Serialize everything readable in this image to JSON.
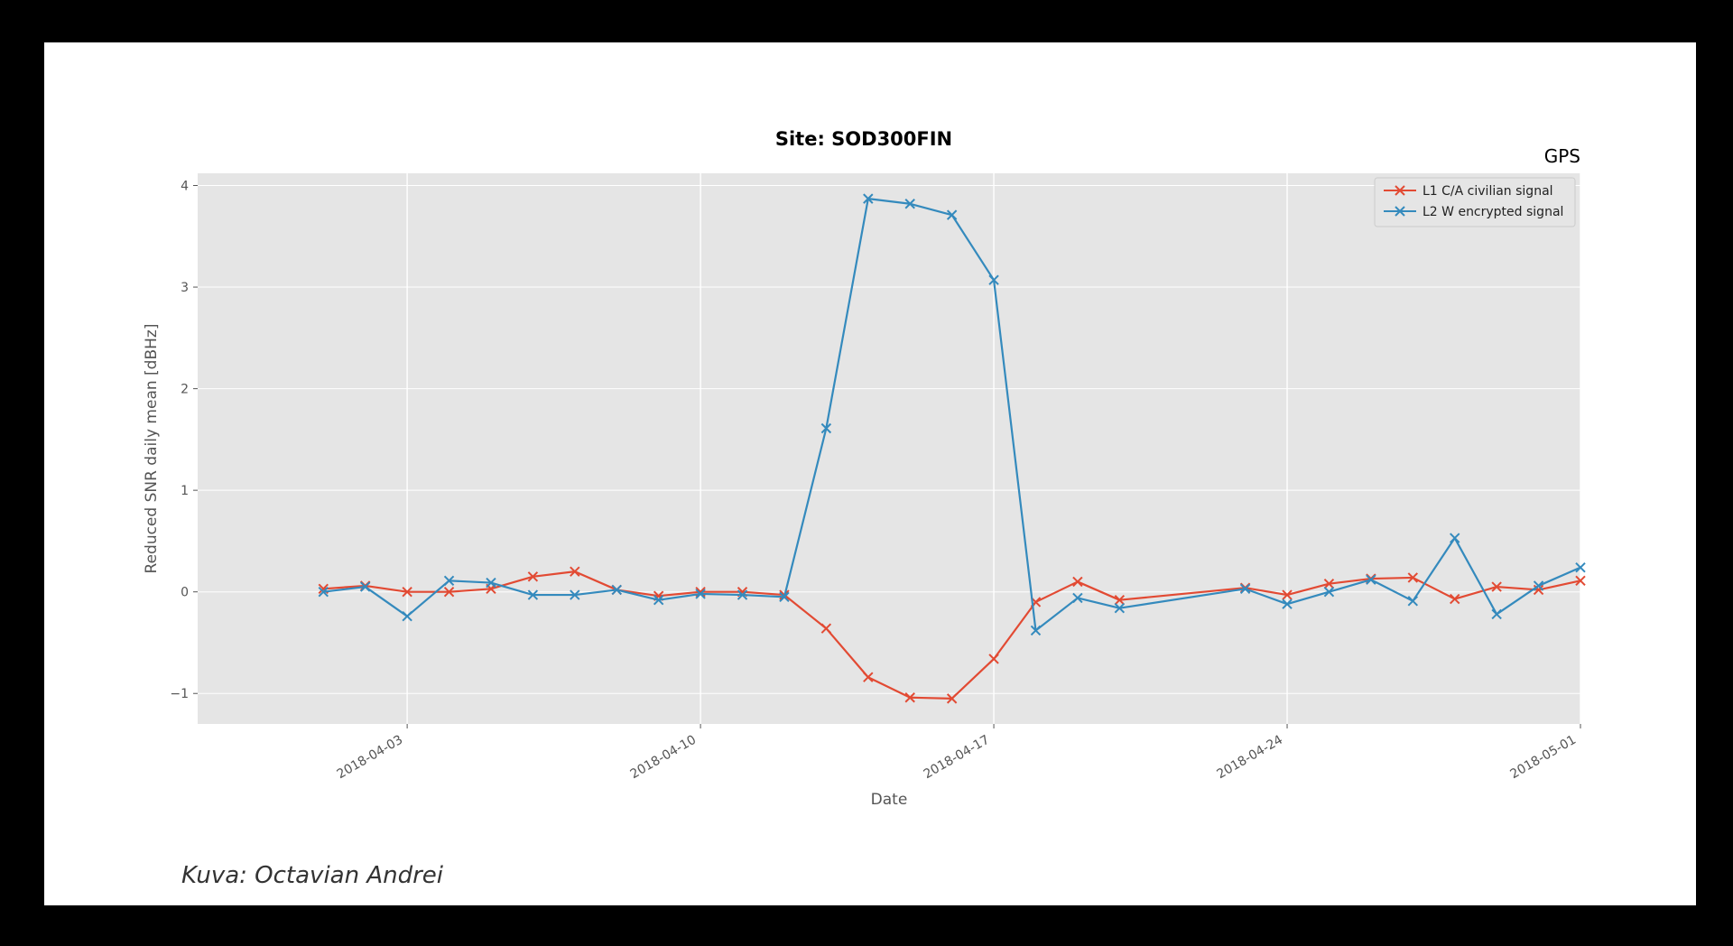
{
  "caption": "Kuva: Octavian Andrei",
  "colors": {
    "outer_background": "#000000",
    "panel_background": "#ffffff",
    "plot_background": "#e5e5e5",
    "grid": "#ffffff",
    "series_l1": "#e24a33",
    "series_l2": "#348abd"
  },
  "chart_data": {
    "type": "line",
    "title": "Site: SOD300FIN",
    "corner_label": "GPS",
    "xlabel": "Date",
    "ylabel": "Reduced SNR daily mean [dBHz]",
    "xlim": [
      "2018-03-29",
      "2018-05-01"
    ],
    "ylim": [
      -1.3,
      4.12
    ],
    "grid": true,
    "legend_position": "top-right",
    "x_ticks": [
      "2018-04-03",
      "2018-04-10",
      "2018-04-17",
      "2018-04-24",
      "2018-05-01"
    ],
    "y_ticks": [
      -1,
      0,
      1,
      2,
      3,
      4
    ],
    "y_tick_labels": [
      "−1",
      "0",
      "1",
      "2",
      "3",
      "4"
    ],
    "x": [
      "2018-04-01",
      "2018-04-02",
      "2018-04-03",
      "2018-04-04",
      "2018-04-05",
      "2018-04-06",
      "2018-04-07",
      "2018-04-08",
      "2018-04-09",
      "2018-04-10",
      "2018-04-11",
      "2018-04-12",
      "2018-04-13",
      "2018-04-14",
      "2018-04-15",
      "2018-04-16",
      "2018-04-17",
      "2018-04-18",
      "2018-04-19",
      "2018-04-20",
      "2018-04-23",
      "2018-04-24",
      "2018-04-25",
      "2018-04-26",
      "2018-04-27",
      "2018-04-28",
      "2018-04-29",
      "2018-04-30",
      "2018-05-01"
    ],
    "series": [
      {
        "name": "L1 C/A civilian signal",
        "color": "#e24a33",
        "values": [
          0.03,
          0.06,
          0.0,
          0.0,
          0.03,
          0.15,
          0.2,
          0.02,
          -0.04,
          0.0,
          0.0,
          -0.03,
          -0.36,
          -0.84,
          -1.04,
          -1.05,
          -0.66,
          -0.1,
          0.1,
          -0.08,
          0.04,
          -0.03,
          0.08,
          0.13,
          0.14,
          -0.07,
          0.05,
          0.02,
          0.11
        ]
      },
      {
        "name": "L2 W encrypted signal",
        "color": "#348abd",
        "values": [
          0.0,
          0.05,
          -0.24,
          0.11,
          0.09,
          -0.03,
          -0.03,
          0.02,
          -0.08,
          -0.02,
          -0.03,
          -0.05,
          1.61,
          3.87,
          3.82,
          3.71,
          3.07,
          -0.38,
          -0.06,
          -0.16,
          0.03,
          -0.12,
          0.0,
          0.12,
          -0.09,
          0.53,
          -0.22,
          0.06,
          0.24
        ]
      }
    ]
  }
}
